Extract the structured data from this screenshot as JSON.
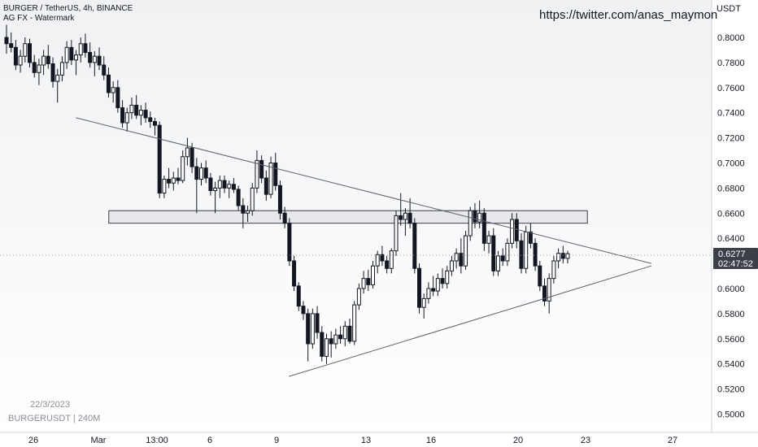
{
  "header": {
    "title": "BURGER / TetherUS, 4h, BINANCE",
    "indicator": "AG FX - Watermark"
  },
  "watermark": {
    "url": "https://twitter.com/anas_maymon",
    "date": "22/3/2023",
    "symbol": "BURGERUSDT | 240M"
  },
  "price_axis": {
    "currency": "USDT",
    "ticks": [
      "0.8000",
      "0.7800",
      "0.7600",
      "0.7400",
      "0.7200",
      "0.7000",
      "0.6800",
      "0.6600",
      "0.6400",
      "0.6200",
      "0.6000",
      "0.5800",
      "0.5600",
      "0.5400",
      "0.5200",
      "0.5000"
    ]
  },
  "last_price": {
    "value": "0.6277",
    "countdown": "02:47:52"
  },
  "time_axis": {
    "ticks": [
      "26",
      "Mar",
      "13:00",
      "6",
      "9",
      "13",
      "16",
      "20",
      "23",
      "27"
    ]
  },
  "colors": {
    "candle": "#131722",
    "background_top": "#f2f3f5",
    "background_bottom": "#ffffff",
    "zone_fill": "#d1d4dc",
    "line": "#5d606b"
  },
  "chart_data": {
    "type": "candlestick",
    "title": "BURGER / TetherUS, 4h, BINANCE",
    "ylabel": "USDT",
    "ylim": [
      0.49,
      0.815
    ],
    "xlim": [
      "2023-02-25",
      "2023-03-28"
    ],
    "interval": "4h",
    "last_close": 0.6277,
    "candles_ohlc": [
      [
        0.8,
        0.81,
        0.787,
        0.795
      ],
      [
        0.795,
        0.804,
        0.788,
        0.792
      ],
      [
        0.792,
        0.798,
        0.774,
        0.778
      ],
      [
        0.778,
        0.79,
        0.772,
        0.785
      ],
      [
        0.785,
        0.8,
        0.78,
        0.795
      ],
      [
        0.795,
        0.799,
        0.776,
        0.78
      ],
      [
        0.78,
        0.786,
        0.768,
        0.772
      ],
      [
        0.772,
        0.783,
        0.762,
        0.778
      ],
      [
        0.778,
        0.79,
        0.77,
        0.785
      ],
      [
        0.785,
        0.794,
        0.775,
        0.779
      ],
      [
        0.779,
        0.784,
        0.76,
        0.765
      ],
      [
        0.765,
        0.775,
        0.748,
        0.77
      ],
      [
        0.77,
        0.785,
        0.765,
        0.78
      ],
      [
        0.78,
        0.797,
        0.775,
        0.792
      ],
      [
        0.792,
        0.798,
        0.778,
        0.782
      ],
      [
        0.782,
        0.79,
        0.77,
        0.786
      ],
      [
        0.786,
        0.8,
        0.78,
        0.795
      ],
      [
        0.795,
        0.803,
        0.784,
        0.788
      ],
      [
        0.788,
        0.796,
        0.776,
        0.78
      ],
      [
        0.78,
        0.789,
        0.769,
        0.785
      ],
      [
        0.785,
        0.792,
        0.774,
        0.778
      ],
      [
        0.778,
        0.785,
        0.766,
        0.77
      ],
      [
        0.77,
        0.776,
        0.752,
        0.756
      ],
      [
        0.756,
        0.765,
        0.748,
        0.76
      ],
      [
        0.76,
        0.766,
        0.74,
        0.744
      ],
      [
        0.744,
        0.75,
        0.728,
        0.732
      ],
      [
        0.732,
        0.744,
        0.725,
        0.74
      ],
      [
        0.74,
        0.752,
        0.735,
        0.746
      ],
      [
        0.746,
        0.754,
        0.735,
        0.738
      ],
      [
        0.738,
        0.746,
        0.73,
        0.742
      ],
      [
        0.742,
        0.748,
        0.732,
        0.736
      ],
      [
        0.736,
        0.741,
        0.728,
        0.733
      ],
      [
        0.733,
        0.736,
        0.722,
        0.73
      ],
      [
        0.73,
        0.733,
        0.672,
        0.676
      ],
      [
        0.676,
        0.69,
        0.672,
        0.687
      ],
      [
        0.687,
        0.696,
        0.68,
        0.684
      ],
      [
        0.684,
        0.693,
        0.678,
        0.688
      ],
      [
        0.688,
        0.696,
        0.683,
        0.686
      ],
      [
        0.686,
        0.71,
        0.684,
        0.705
      ],
      [
        0.705,
        0.72,
        0.698,
        0.712
      ],
      [
        0.712,
        0.716,
        0.692,
        0.697
      ],
      [
        0.697,
        0.704,
        0.66,
        0.687
      ],
      [
        0.687,
        0.7,
        0.682,
        0.696
      ],
      [
        0.696,
        0.702,
        0.684,
        0.688
      ],
      [
        0.688,
        0.692,
        0.674,
        0.678
      ],
      [
        0.678,
        0.685,
        0.66,
        0.68
      ],
      [
        0.68,
        0.69,
        0.672,
        0.686
      ],
      [
        0.686,
        0.69,
        0.676,
        0.68
      ],
      [
        0.68,
        0.686,
        0.672,
        0.683
      ],
      [
        0.683,
        0.688,
        0.676,
        0.679
      ],
      [
        0.679,
        0.682,
        0.662,
        0.666
      ],
      [
        0.666,
        0.672,
        0.648,
        0.66
      ],
      [
        0.66,
        0.666,
        0.653,
        0.662
      ],
      [
        0.662,
        0.684,
        0.658,
        0.68
      ],
      [
        0.68,
        0.71,
        0.676,
        0.702
      ],
      [
        0.702,
        0.706,
        0.684,
        0.688
      ],
      [
        0.688,
        0.694,
        0.67,
        0.675
      ],
      [
        0.675,
        0.705,
        0.672,
        0.7
      ],
      [
        0.7,
        0.708,
        0.678,
        0.682
      ],
      [
        0.682,
        0.686,
        0.655,
        0.66
      ],
      [
        0.66,
        0.665,
        0.648,
        0.652
      ],
      [
        0.652,
        0.656,
        0.618,
        0.622
      ],
      [
        0.622,
        0.626,
        0.598,
        0.602
      ],
      [
        0.602,
        0.605,
        0.582,
        0.586
      ],
      [
        0.586,
        0.59,
        0.575,
        0.58
      ],
      [
        0.58,
        0.584,
        0.542,
        0.556
      ],
      [
        0.556,
        0.584,
        0.552,
        0.58
      ],
      [
        0.58,
        0.586,
        0.56,
        0.565
      ],
      [
        0.565,
        0.57,
        0.542,
        0.546
      ],
      [
        0.546,
        0.564,
        0.54,
        0.56
      ],
      [
        0.56,
        0.566,
        0.545,
        0.556
      ],
      [
        0.556,
        0.568,
        0.552,
        0.563
      ],
      [
        0.563,
        0.57,
        0.556,
        0.56
      ],
      [
        0.56,
        0.574,
        0.554,
        0.57
      ],
      [
        0.57,
        0.576,
        0.556,
        0.558
      ],
      [
        0.558,
        0.59,
        0.555,
        0.587
      ],
      [
        0.587,
        0.604,
        0.583,
        0.6
      ],
      [
        0.6,
        0.614,
        0.596,
        0.608
      ],
      [
        0.608,
        0.615,
        0.598,
        0.603
      ],
      [
        0.603,
        0.622,
        0.6,
        0.618
      ],
      [
        0.618,
        0.63,
        0.612,
        0.627
      ],
      [
        0.627,
        0.634,
        0.618,
        0.622
      ],
      [
        0.622,
        0.626,
        0.612,
        0.616
      ],
      [
        0.616,
        0.632,
        0.612,
        0.63
      ],
      [
        0.63,
        0.662,
        0.626,
        0.658
      ],
      [
        0.658,
        0.676,
        0.65,
        0.655
      ],
      [
        0.655,
        0.664,
        0.642,
        0.66
      ],
      [
        0.66,
        0.672,
        0.648,
        0.652
      ],
      [
        0.652,
        0.656,
        0.612,
        0.616
      ],
      [
        0.616,
        0.62,
        0.58,
        0.585
      ],
      [
        0.585,
        0.596,
        0.576,
        0.592
      ],
      [
        0.592,
        0.605,
        0.588,
        0.6
      ],
      [
        0.6,
        0.61,
        0.594,
        0.598
      ],
      [
        0.598,
        0.612,
        0.594,
        0.608
      ],
      [
        0.608,
        0.616,
        0.6,
        0.604
      ],
      [
        0.604,
        0.618,
        0.6,
        0.614
      ],
      [
        0.614,
        0.626,
        0.61,
        0.622
      ],
      [
        0.622,
        0.632,
        0.616,
        0.628
      ],
      [
        0.628,
        0.64,
        0.612,
        0.618
      ],
      [
        0.618,
        0.646,
        0.615,
        0.642
      ],
      [
        0.642,
        0.665,
        0.638,
        0.662
      ],
      [
        0.662,
        0.668,
        0.648,
        0.653
      ],
      [
        0.653,
        0.67,
        0.648,
        0.66
      ],
      [
        0.66,
        0.664,
        0.63,
        0.636
      ],
      [
        0.636,
        0.646,
        0.628,
        0.642
      ],
      [
        0.642,
        0.648,
        0.61,
        0.614
      ],
      [
        0.614,
        0.63,
        0.61,
        0.626
      ],
      [
        0.626,
        0.632,
        0.618,
        0.622
      ],
      [
        0.622,
        0.64,
        0.618,
        0.636
      ],
      [
        0.636,
        0.66,
        0.632,
        0.655
      ],
      [
        0.655,
        0.66,
        0.632,
        0.638
      ],
      [
        0.638,
        0.644,
        0.612,
        0.616
      ],
      [
        0.616,
        0.65,
        0.612,
        0.645
      ],
      [
        0.645,
        0.652,
        0.632,
        0.636
      ],
      [
        0.636,
        0.64,
        0.614,
        0.618
      ],
      [
        0.618,
        0.622,
        0.598,
        0.602
      ],
      [
        0.602,
        0.608,
        0.586,
        0.59
      ],
      [
        0.59,
        0.612,
        0.58,
        0.608
      ],
      [
        0.608,
        0.626,
        0.604,
        0.622
      ],
      [
        0.622,
        0.632,
        0.616,
        0.628
      ],
      [
        0.628,
        0.634,
        0.62,
        0.624
      ],
      [
        0.624,
        0.63,
        0.62,
        0.6277
      ]
    ],
    "zone": {
      "x_start": "2023-03-01 13:00",
      "x_end": "2023-03-24",
      "y_low": 0.652,
      "y_high": 0.662
    },
    "trendlines": [
      {
        "from": [
          "2023-02-28",
          0.736
        ],
        "to": [
          "2023-03-27",
          0.62
        ]
      },
      {
        "from": [
          "2023-03-10",
          0.53
        ],
        "to": [
          "2023-03-27",
          0.618
        ]
      }
    ]
  }
}
